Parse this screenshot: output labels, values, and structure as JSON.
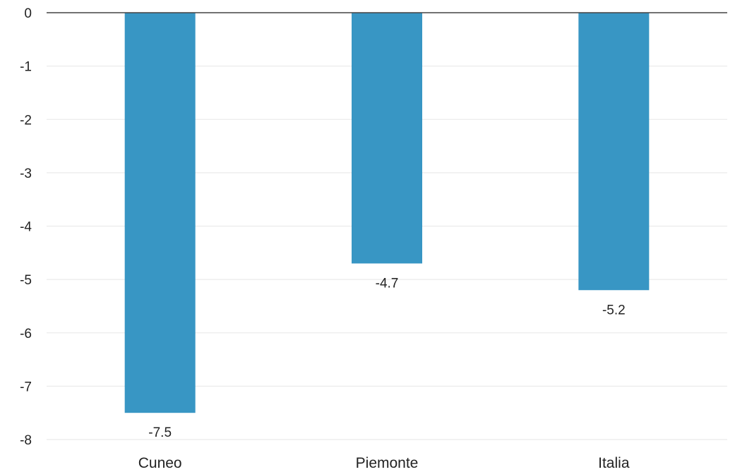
{
  "chart_data": {
    "type": "bar",
    "title": "",
    "xlabel": "",
    "ylabel": "",
    "categories": [
      "Cuneo",
      "Piemonte",
      "Italia"
    ],
    "values": [
      -7.5,
      -4.7,
      -5.2
    ],
    "value_labels": [
      "-7.5",
      "-4.7",
      "-5.2"
    ],
    "ylim": [
      -8,
      0
    ],
    "yticks": [
      0,
      -1,
      -2,
      -3,
      -4,
      -5,
      -6,
      -7,
      -8
    ],
    "ytick_labels": [
      "0",
      "-1",
      "-2",
      "-3",
      "-4",
      "-5",
      "-6",
      "-7",
      "-8"
    ],
    "grid": true,
    "legend": "none",
    "colors": {
      "bar": "#3896c4",
      "grid": "#ebebeb",
      "zero_line": "#444444",
      "text": "#222222"
    }
  }
}
